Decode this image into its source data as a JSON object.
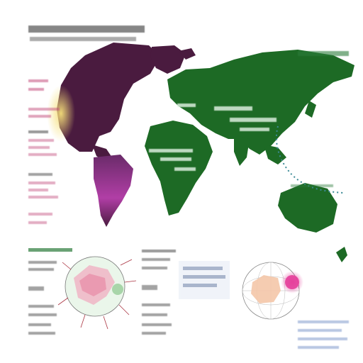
{
  "header": {
    "title": "",
    "subtitle": ""
  },
  "map": {
    "labels": {
      "top_right": "",
      "center_top": "",
      "center_block": "",
      "africa_block": ""
    },
    "colors": {
      "americas": "#4a1b3f",
      "south_america_gradient_top": "#8c2b7c",
      "south_america_gradient_bottom": "#4a1b3f",
      "europe_africa_asia": "#1d6a25",
      "australia": "#1d6a25",
      "greenland": "#4a1b3f",
      "accent_yellow": "#f3d35a",
      "accent_pink": "#e53f9b",
      "accent_teal": "#3b8a96"
    }
  },
  "side_notes": {
    "left_column": ""
  },
  "insets": {
    "left_globe": {
      "title": ""
    },
    "right_globe": {
      "title": ""
    },
    "center_note": ""
  },
  "icons": {
    "teal_dotted_line": "dotted-path-icon",
    "pink_circle": "circle-highlight-icon"
  }
}
